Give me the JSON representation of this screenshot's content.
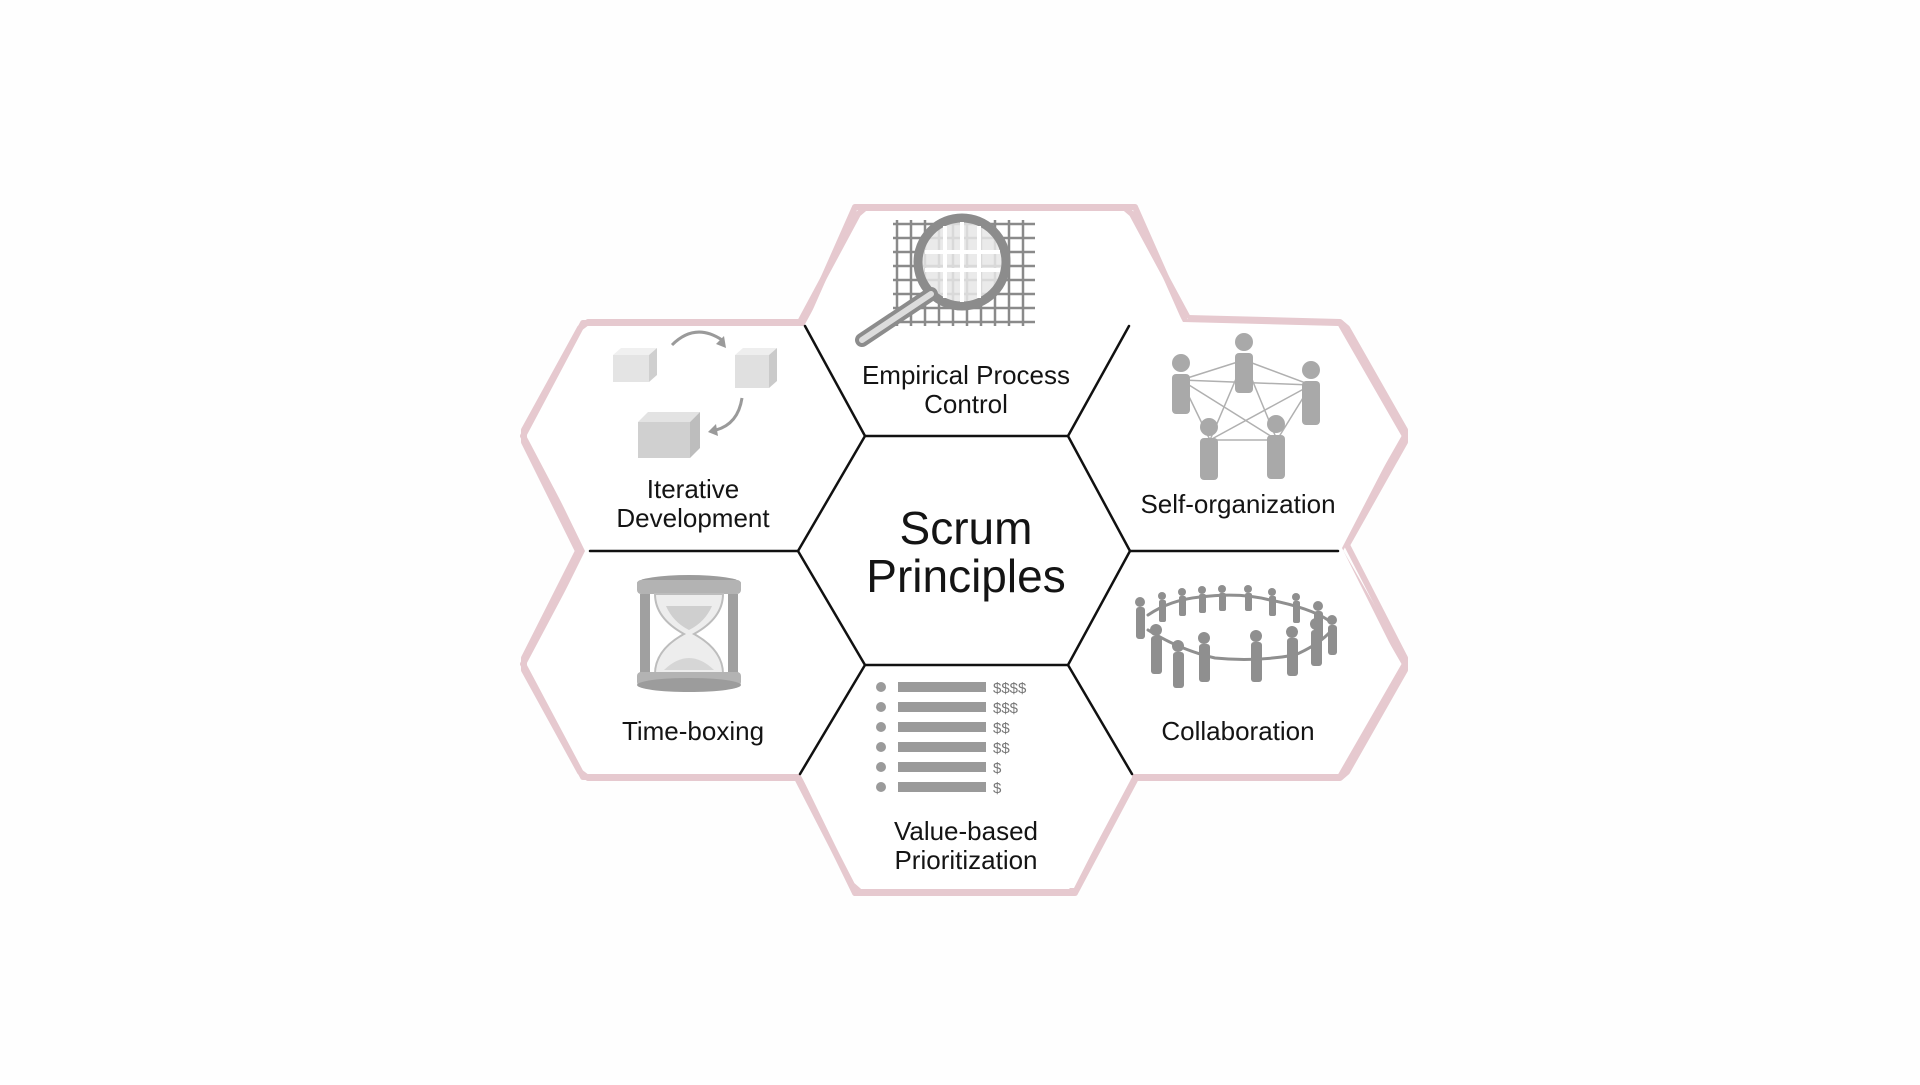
{
  "center": {
    "title_line1": "Scrum",
    "title_line2": "Principles"
  },
  "principles": {
    "empirical": {
      "line1": "Empirical Process",
      "line2": "Control",
      "icon": "magnifier-grid-icon"
    },
    "iterative": {
      "line1": "Iterative",
      "line2": "Development",
      "icon": "cubes-cycle-icon"
    },
    "self_org": {
      "line1": "Self-organization",
      "icon": "people-network-icon"
    },
    "timeboxing": {
      "line1": "Time-boxing",
      "icon": "hourglass-icon"
    },
    "collaboration": {
      "line1": "Collaboration",
      "icon": "people-circle-icon"
    },
    "value": {
      "line1": "Value-based",
      "line2": "Prioritization",
      "icon": "prioritized-list-icon",
      "list_values": [
        "$$$$",
        "$$$",
        "$$",
        "$$",
        "$",
        "$"
      ]
    }
  },
  "colors": {
    "outer_border": "#e6c9cf",
    "inner_border": "#111111",
    "icon_gray": "#a9a9a9",
    "text": "#141414"
  }
}
